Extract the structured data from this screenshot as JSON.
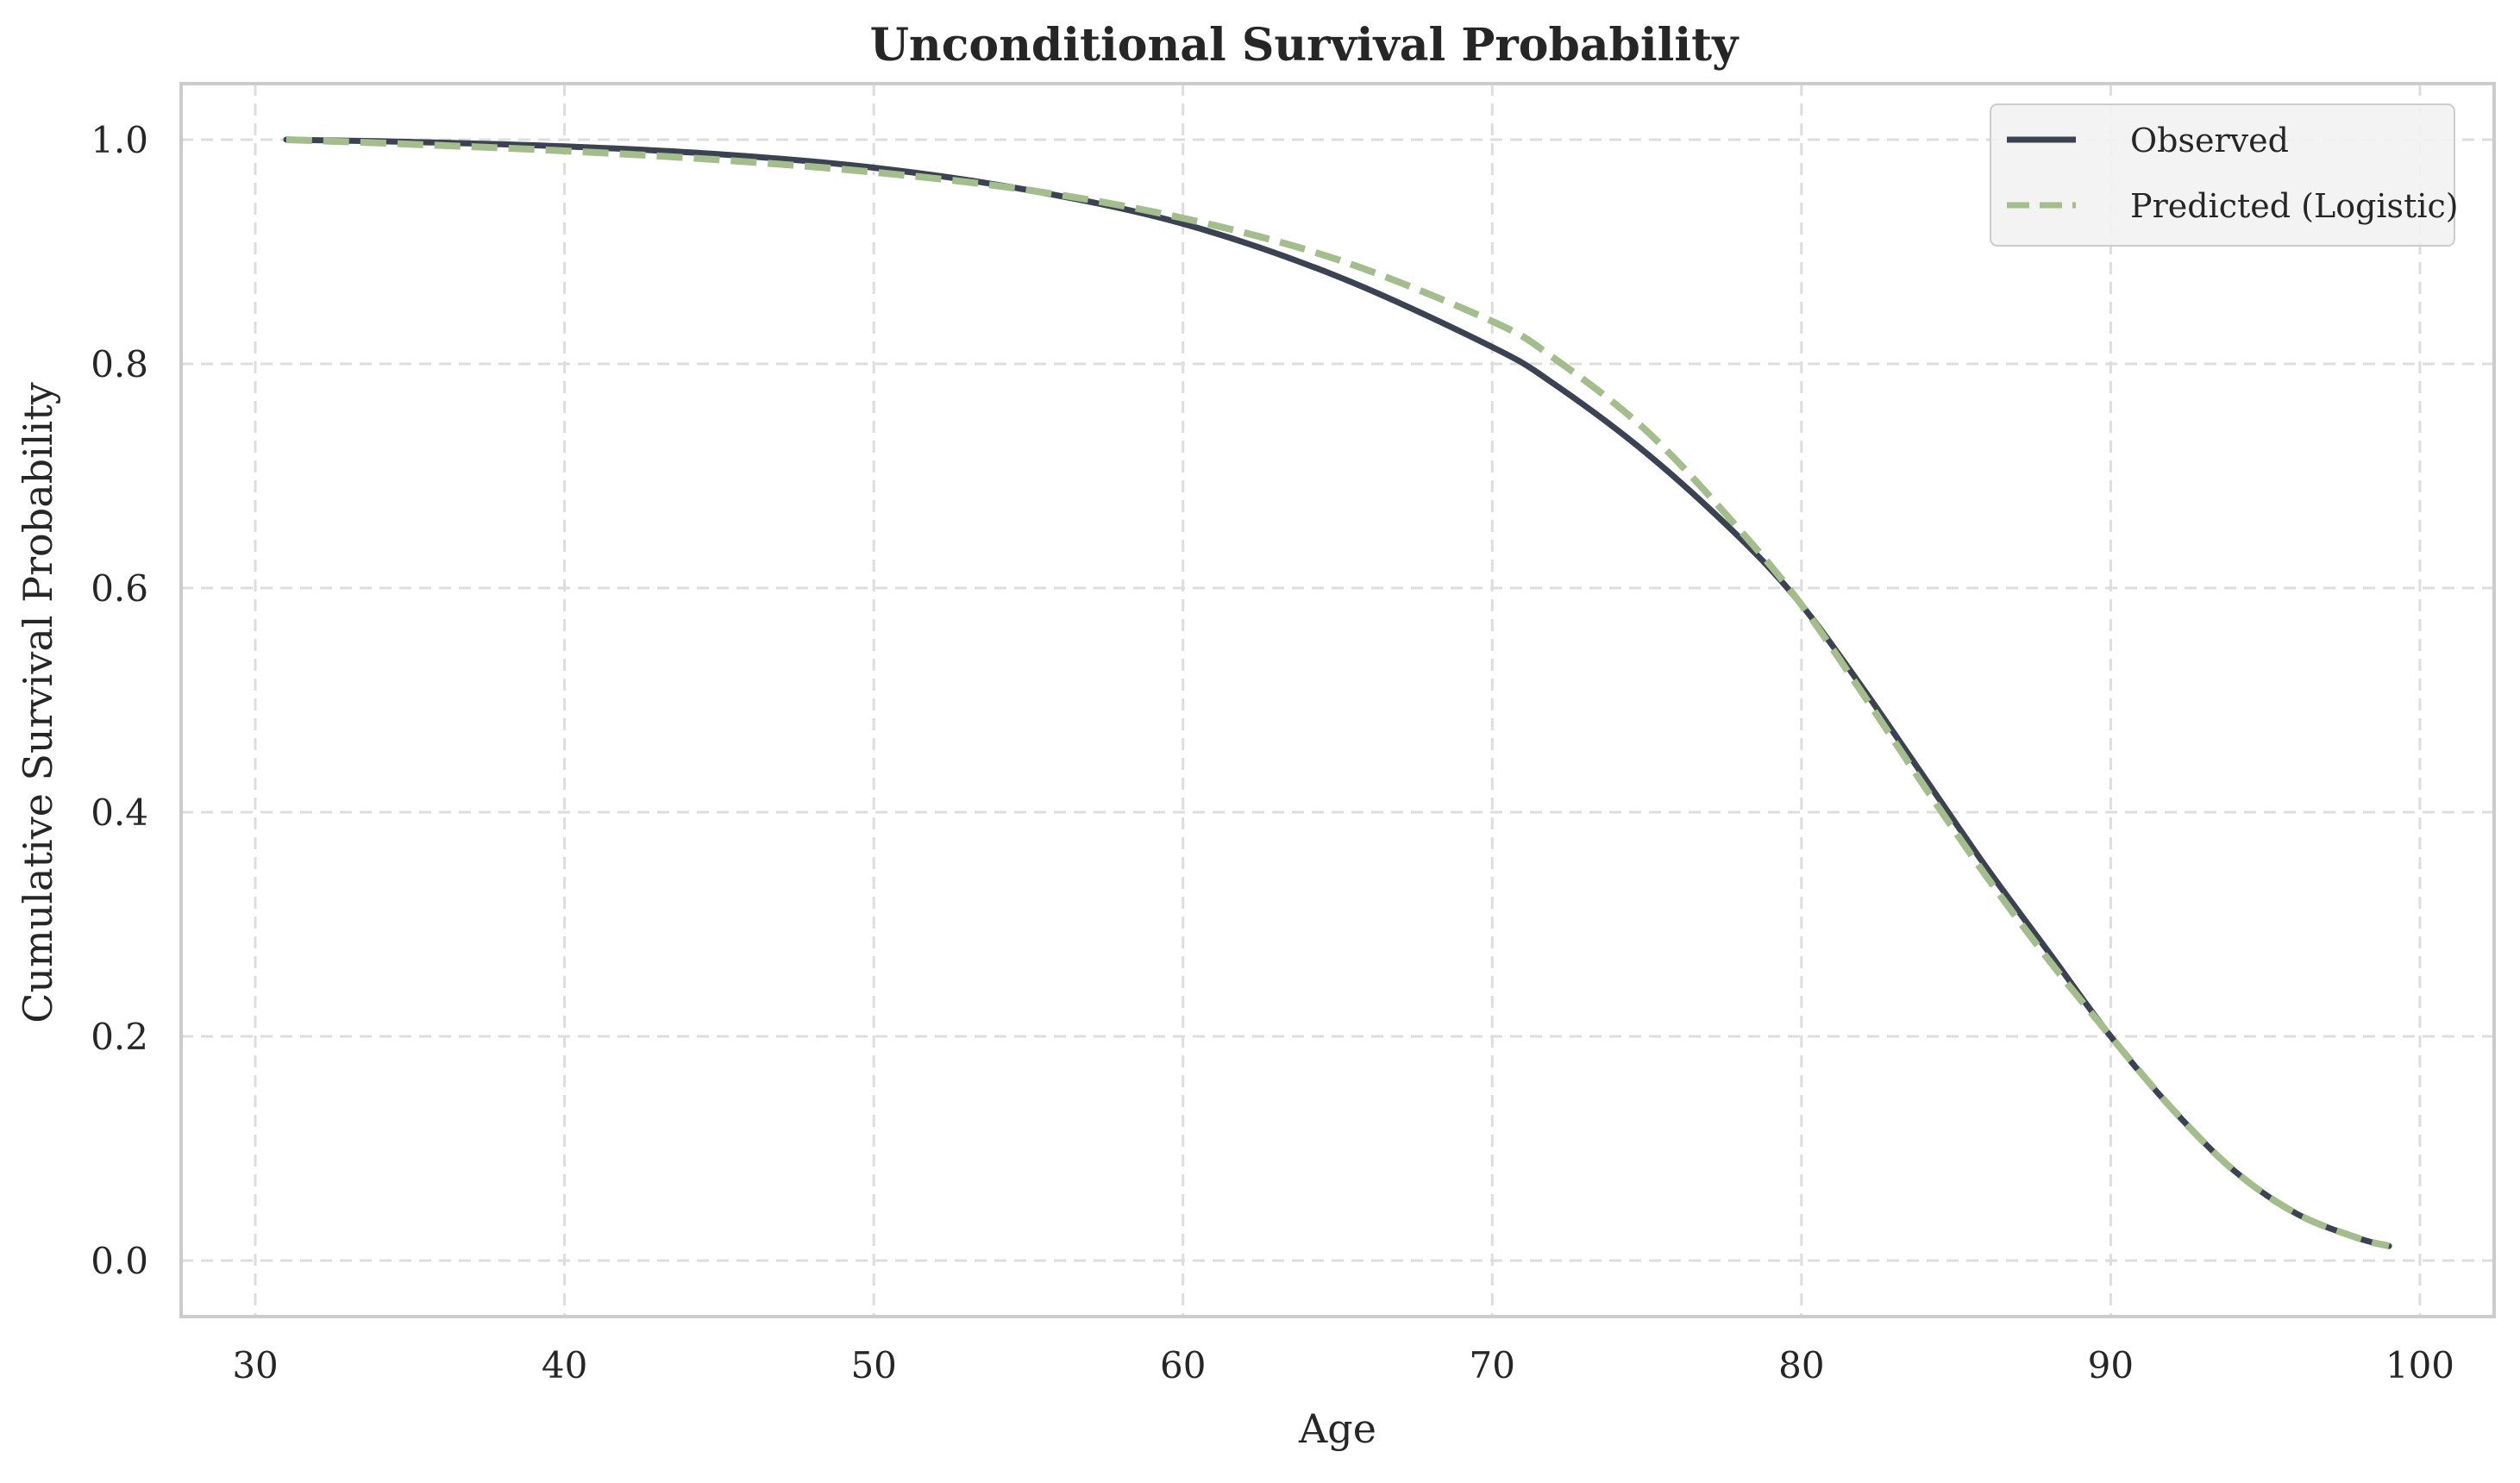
{
  "chart_data": {
    "type": "line",
    "title": "Unconditional Survival Probability",
    "xlabel": "Age",
    "ylabel": "Cumulative Survival Probability",
    "xlim": [
      27.6,
      102.4
    ],
    "ylim": [
      -0.05,
      1.05
    ],
    "xticks": [
      30,
      40,
      50,
      60,
      70,
      80,
      90,
      100
    ],
    "yticks": [
      0.0,
      0.2,
      0.4,
      0.6,
      0.8,
      1.0
    ],
    "xtick_labels": [
      "30",
      "40",
      "50",
      "60",
      "70",
      "80",
      "90",
      "100"
    ],
    "ytick_labels": [
      "0.0",
      "0.2",
      "0.4",
      "0.6",
      "0.8",
      "1.0"
    ],
    "grid": true,
    "legend_position": "top-right",
    "series": [
      {
        "name": "Observed",
        "color": "#3b4252",
        "style": "solid",
        "x": [
          31,
          35,
          40,
          45,
          50,
          55,
          60,
          65,
          70,
          72,
          75,
          78,
          80,
          82,
          84,
          86,
          88,
          90,
          92,
          94,
          96,
          98,
          99
        ],
        "y": [
          1.0,
          0.998,
          0.994,
          0.987,
          0.975,
          0.955,
          0.925,
          0.878,
          0.815,
          0.782,
          0.72,
          0.645,
          0.585,
          0.51,
          0.43,
          0.35,
          0.275,
          0.2,
          0.135,
          0.08,
          0.042,
          0.02,
          0.013
        ]
      },
      {
        "name": "Predicted (Logistic)",
        "color": "#a3be8c",
        "style": "dashed",
        "x": [
          31,
          35,
          40,
          45,
          50,
          55,
          60,
          65,
          70,
          72,
          75,
          78,
          80,
          82,
          84,
          86,
          88,
          90,
          92,
          94,
          96,
          98,
          99
        ],
        "y": [
          1.0,
          0.996,
          0.99,
          0.982,
          0.971,
          0.955,
          0.93,
          0.893,
          0.838,
          0.805,
          0.74,
          0.652,
          0.585,
          0.505,
          0.422,
          0.342,
          0.268,
          0.2,
          0.135,
          0.08,
          0.042,
          0.02,
          0.013
        ]
      }
    ]
  }
}
